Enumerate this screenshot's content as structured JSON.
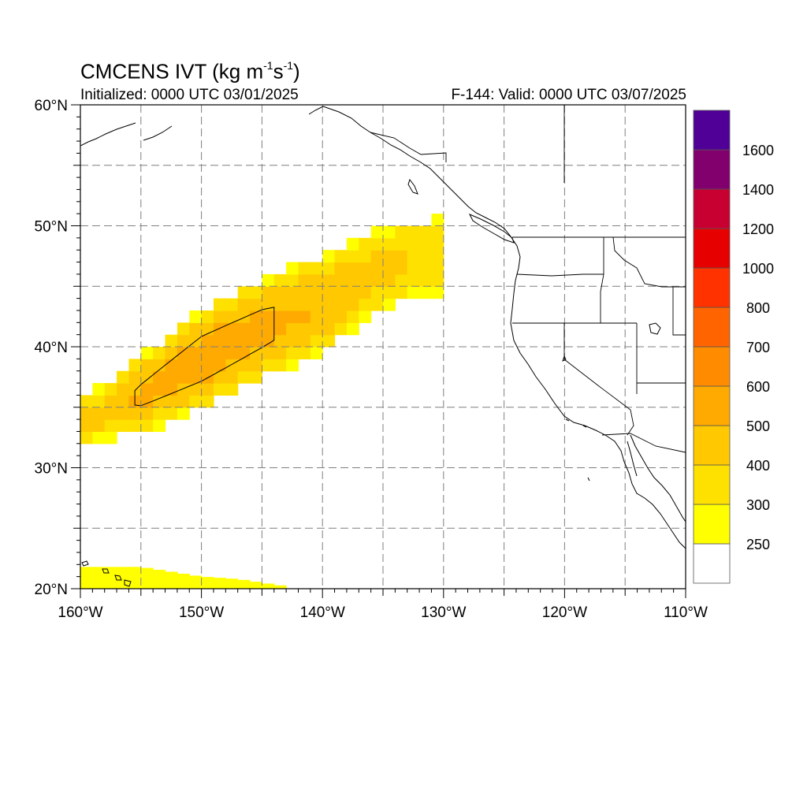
{
  "title": {
    "prefix": "CMCENS IVT (kg m",
    "exp1": "-1",
    "mid": "s",
    "exp2": "-1",
    "suffix": ")"
  },
  "subtitle_left": "Initialized: 0000 UTC 03/01/2025",
  "subtitle_right": "F-144: Valid: 0000 UTC 03/07/2025",
  "map": {
    "lon_range": [
      -160,
      -110
    ],
    "lat_range": [
      20,
      60
    ],
    "lon_tick_labels": [
      "160°W",
      "150°W",
      "140°W",
      "130°W",
      "120°W",
      "110°W"
    ],
    "lat_tick_labels": [
      "20°N",
      "30°N",
      "40°N",
      "50°N",
      "60°N"
    ],
    "gridlines": "dashed",
    "land_fill": "none",
    "coastlines": true,
    "state_borders": true
  },
  "colorbar": {
    "levels": [
      "250",
      "300",
      "400",
      "500",
      "600",
      "700",
      "800",
      "1000",
      "1200",
      "1400",
      "1600"
    ],
    "colors": [
      "#ffffff",
      "#ffff00",
      "#ffe100",
      "#ffc800",
      "#ffaa00",
      "#ff8c00",
      "#ff6400",
      "#ff3200",
      "#e60000",
      "#c80032",
      "#82006e",
      "#500096"
    ],
    "placement": "right"
  },
  "chart_data": {
    "type": "heatmap",
    "variable": "IVT",
    "units": "kg m-1 s-1",
    "river_band": {
      "lon": [
        -159.5,
        -155,
        -150,
        -145,
        -140,
        -135,
        -131
      ],
      "lat": [
        34.0,
        36.0,
        39.0,
        41.5,
        43.5,
        46.5,
        47.5
      ],
      "half_width_deg": [
        1.8,
        3.2,
        4.2,
        4.2,
        4.0,
        3.4,
        3.0
      ],
      "peak_ivt": [
        430,
        520,
        560,
        540,
        490,
        430,
        380
      ],
      "contour_level": 500
    },
    "southern_band": {
      "lon": [
        -160,
        -155,
        -150,
        -147,
        -143
      ],
      "lat": [
        21.8,
        21.8,
        21.0,
        20.8,
        20.2
      ],
      "ivt": 280
    }
  }
}
